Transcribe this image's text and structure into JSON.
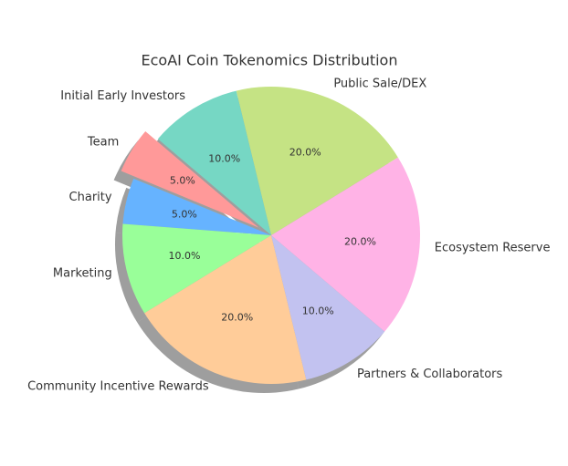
{
  "chart_data": {
    "type": "pie",
    "title": "EcoAI Coin Tokenomics Distribution",
    "categories": [
      "Public Sale/DEX",
      "Initial Early Investors",
      "Team",
      "Charity",
      "Marketing",
      "Community Incentive Rewards",
      "Partners & Collaborators",
      "Ecosystem Reserve"
    ],
    "values": [
      20,
      10,
      5,
      5,
      10,
      20,
      10,
      20
    ],
    "value_labels": [
      "20.0%",
      "10.0%",
      "5.0%",
      "5.0%",
      "10.0%",
      "20.0%",
      "10.0%",
      "20.0%"
    ],
    "colors": [
      "#c5e384",
      "#76d7c4",
      "#ff9999",
      "#66b3ff",
      "#99ff99",
      "#ffcc99",
      "#c2c2f0",
      "#ffb3e6"
    ]
  }
}
